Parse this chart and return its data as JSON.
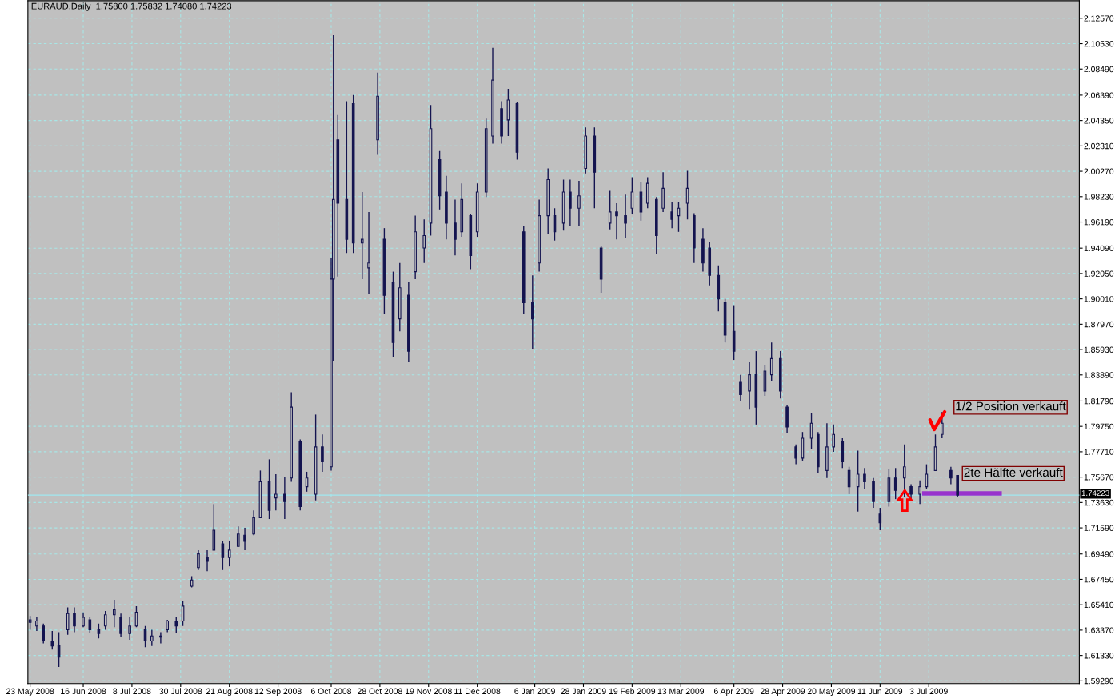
{
  "chart_data": {
    "type": "candlestick",
    "title": "EURAUD,Daily  1.75800 1.75832 1.74080 1.74223",
    "color": "#141450",
    "grid": true,
    "x": [
      "2008-05-23",
      "2008-05-26",
      "2008-05-29",
      "2008-06-02",
      "2008-06-05",
      "2008-06-09",
      "2008-06-12",
      "2008-06-16",
      "2008-06-19",
      "2008-06-23",
      "2008-06-26",
      "2008-06-30",
      "2008-07-03",
      "2008-07-07",
      "2008-07-10",
      "2008-07-14",
      "2008-07-17",
      "2008-07-21",
      "2008-07-24",
      "2008-07-28",
      "2008-07-31",
      "2008-08-04",
      "2008-08-07",
      "2008-08-11",
      "2008-08-14",
      "2008-08-18",
      "2008-08-21",
      "2008-08-25",
      "2008-08-28",
      "2008-09-01",
      "2008-09-04",
      "2008-09-08",
      "2008-09-11",
      "2008-09-15",
      "2008-09-18",
      "2008-09-22",
      "2008-09-25",
      "2008-09-29",
      "2008-10-02",
      "2008-10-06",
      "2008-10-07",
      "2008-10-09",
      "2008-10-13",
      "2008-10-16",
      "2008-10-20",
      "2008-10-23",
      "2008-10-27",
      "2008-10-30",
      "2008-11-03",
      "2008-11-06",
      "2008-11-10",
      "2008-11-13",
      "2008-11-17",
      "2008-11-20",
      "2008-11-24",
      "2008-11-27",
      "2008-12-01",
      "2008-12-04",
      "2008-12-08",
      "2008-12-11",
      "2008-12-15",
      "2008-12-18",
      "2008-12-22",
      "2008-12-25",
      "2008-12-29",
      "2009-01-01",
      "2009-01-05",
      "2009-01-08",
      "2009-01-12",
      "2009-01-15",
      "2009-01-19",
      "2009-01-22",
      "2009-01-26",
      "2009-01-29",
      "2009-02-02",
      "2009-02-05",
      "2009-02-09",
      "2009-02-12",
      "2009-02-16",
      "2009-02-19",
      "2009-02-23",
      "2009-02-26",
      "2009-03-02",
      "2009-03-05",
      "2009-03-09",
      "2009-03-12",
      "2009-03-16",
      "2009-03-19",
      "2009-03-23",
      "2009-03-26",
      "2009-03-30",
      "2009-04-02",
      "2009-04-06",
      "2009-04-09",
      "2009-04-13",
      "2009-04-16",
      "2009-04-20",
      "2009-04-23",
      "2009-04-27",
      "2009-04-30",
      "2009-05-04",
      "2009-05-07",
      "2009-05-11",
      "2009-05-14",
      "2009-05-18",
      "2009-05-21",
      "2009-05-25",
      "2009-05-28",
      "2009-06-01",
      "2009-06-04",
      "2009-06-08",
      "2009-06-11",
      "2009-06-15",
      "2009-06-18",
      "2009-06-22",
      "2009-06-25",
      "2009-06-29",
      "2009-07-02",
      "2009-07-06",
      "2009-07-09",
      "2009-07-13",
      "2009-07-16"
    ],
    "ohlc": [
      [
        1.64,
        1.645,
        1.634,
        1.642
      ],
      [
        1.637,
        1.644,
        1.633,
        1.641
      ],
      [
        1.637,
        1.639,
        1.623,
        1.625
      ],
      [
        1.625,
        1.633,
        1.618,
        1.621
      ],
      [
        1.621,
        1.632,
        1.604,
        1.612
      ],
      [
        1.634,
        1.652,
        1.63,
        1.647
      ],
      [
        1.647,
        1.652,
        1.632,
        1.637
      ],
      [
        1.637,
        1.648,
        1.636,
        1.644
      ],
      [
        1.642,
        1.644,
        1.631,
        1.634
      ],
      [
        1.634,
        1.639,
        1.627,
        1.631
      ],
      [
        1.637,
        1.649,
        1.634,
        1.646
      ],
      [
        1.646,
        1.658,
        1.636,
        1.65
      ],
      [
        1.644,
        1.647,
        1.628,
        1.631
      ],
      [
        1.631,
        1.644,
        1.626,
        1.637
      ],
      [
        1.637,
        1.653,
        1.636,
        1.648
      ],
      [
        1.634,
        1.637,
        1.62,
        1.625
      ],
      [
        1.625,
        1.634,
        1.621,
        1.629
      ],
      [
        1.629,
        1.632,
        1.623,
        1.628
      ],
      [
        1.634,
        1.642,
        1.632,
        1.641
      ],
      [
        1.641,
        1.644,
        1.631,
        1.637
      ],
      [
        1.641,
        1.657,
        1.637,
        1.653
      ],
      [
        1.669,
        1.677,
        1.668,
        1.674
      ],
      [
        1.684,
        1.698,
        1.682,
        1.695
      ],
      [
        1.692,
        1.698,
        1.681,
        1.689
      ],
      [
        1.698,
        1.735,
        1.698,
        1.714
      ],
      [
        1.703,
        1.705,
        1.682,
        1.692
      ],
      [
        1.692,
        1.705,
        1.685,
        1.698
      ],
      [
        1.701,
        1.717,
        1.701,
        1.711
      ],
      [
        1.71,
        1.716,
        1.698,
        1.705
      ],
      [
        1.711,
        1.73,
        1.71,
        1.724
      ],
      [
        1.724,
        1.762,
        1.724,
        1.753
      ],
      [
        1.753,
        1.771,
        1.723,
        1.73
      ],
      [
        1.74,
        1.759,
        1.73,
        1.743
      ],
      [
        1.743,
        1.757,
        1.723,
        1.737
      ],
      [
        1.756,
        1.825,
        1.753,
        1.813
      ],
      [
        1.785,
        1.787,
        1.73,
        1.733
      ],
      [
        1.749,
        1.761,
        1.745,
        1.756
      ],
      [
        1.743,
        1.807,
        1.738,
        1.781
      ],
      [
        1.781,
        1.791,
        1.761,
        1.769
      ],
      [
        1.765,
        1.933,
        1.762,
        1.916
      ],
      [
        1.916,
        2.112,
        1.85,
        1.98
      ],
      [
        2.028,
        2.048,
        1.918,
        1.977
      ],
      [
        1.98,
        2.059,
        1.937,
        1.948
      ],
      [
        2.057,
        2.064,
        1.937,
        1.945
      ],
      [
        1.945,
        1.986,
        1.916,
        1.948
      ],
      [
        1.925,
        1.97,
        1.904,
        1.929
      ],
      [
        2.028,
        2.082,
        2.016,
        2.063
      ],
      [
        1.948,
        1.957,
        1.888,
        1.903
      ],
      [
        1.913,
        1.922,
        1.853,
        1.865
      ],
      [
        1.884,
        1.929,
        1.874,
        1.909
      ],
      [
        1.903,
        1.914,
        1.849,
        1.858
      ],
      [
        1.922,
        1.967,
        1.916,
        1.954
      ],
      [
        1.941,
        1.964,
        1.929,
        1.951
      ],
      [
        1.961,
        2.056,
        1.951,
        2.037
      ],
      [
        2.012,
        2.019,
        1.972,
        1.983
      ],
      [
        1.986,
        1.999,
        1.948,
        1.961
      ],
      [
        1.961,
        1.98,
        1.935,
        1.948
      ],
      [
        1.954,
        1.993,
        1.95,
        1.98
      ],
      [
        1.967,
        1.968,
        1.924,
        1.935
      ],
      [
        1.954,
        1.993,
        1.95,
        1.986
      ],
      [
        1.986,
        2.045,
        1.982,
        2.037
      ],
      [
        2.031,
        2.102,
        2.025,
        2.076
      ],
      [
        2.053,
        2.059,
        2.025,
        2.031
      ],
      [
        2.044,
        2.069,
        2.031,
        2.06
      ],
      [
        2.057,
        2.058,
        2.012,
        2.018
      ],
      [
        1.954,
        1.959,
        1.888,
        1.897
      ],
      [
        1.897,
        1.919,
        1.86,
        1.884
      ],
      [
        1.929,
        1.98,
        1.922,
        1.967
      ],
      [
        1.967,
        2.005,
        1.952,
        1.996
      ],
      [
        1.967,
        1.973,
        1.947,
        1.954
      ],
      [
        1.961,
        1.996,
        1.955,
        1.986
      ],
      [
        1.986,
        1.996,
        1.959,
        1.973
      ],
      [
        1.973,
        1.995,
        1.959,
        1.983
      ],
      [
        2.005,
        2.038,
        2.001,
        2.031
      ],
      [
        2.031,
        2.038,
        1.973,
        2.002
      ],
      [
        1.941,
        1.943,
        1.905,
        1.916
      ],
      [
        1.961,
        1.987,
        1.956,
        1.97
      ],
      [
        1.97,
        1.977,
        1.948,
        1.967
      ],
      [
        1.967,
        1.984,
        1.949,
        1.961
      ],
      [
        1.973,
        1.998,
        1.968,
        1.986
      ],
      [
        1.986,
        1.994,
        1.963,
        1.97
      ],
      [
        1.977,
        1.998,
        1.973,
        1.993
      ],
      [
        1.98,
        1.982,
        1.936,
        1.951
      ],
      [
        1.973,
        2.002,
        1.97,
        1.989
      ],
      [
        1.97,
        1.978,
        1.957,
        1.964
      ],
      [
        1.967,
        1.978,
        1.954,
        1.973
      ],
      [
        1.977,
        2.003,
        1.964,
        1.989
      ],
      [
        1.967,
        1.969,
        1.929,
        1.941
      ],
      [
        1.948,
        1.957,
        1.922,
        1.929
      ],
      [
        1.941,
        1.946,
        1.911,
        1.919
      ],
      [
        1.919,
        1.927,
        1.89,
        1.9
      ],
      [
        1.897,
        1.9,
        1.865,
        1.871
      ],
      [
        1.874,
        1.895,
        1.851,
        1.858
      ],
      [
        1.833,
        1.839,
        1.818,
        1.823
      ],
      [
        1.826,
        1.849,
        1.811,
        1.839
      ],
      [
        1.839,
        1.858,
        1.799,
        1.813
      ],
      [
        1.826,
        1.847,
        1.822,
        1.842
      ],
      [
        1.839,
        1.865,
        1.834,
        1.852
      ],
      [
        1.852,
        1.858,
        1.82,
        1.826
      ],
      [
        1.813,
        1.815,
        1.792,
        1.797
      ],
      [
        1.781,
        1.783,
        1.767,
        1.772
      ],
      [
        1.772,
        1.793,
        1.77,
        1.788
      ],
      [
        1.788,
        1.808,
        1.779,
        1.8
      ],
      [
        1.791,
        1.793,
        1.76,
        1.765
      ],
      [
        1.762,
        1.8,
        1.756,
        1.781
      ],
      [
        1.781,
        1.799,
        1.777,
        1.791
      ],
      [
        1.785,
        1.788,
        1.764,
        1.769
      ],
      [
        1.762,
        1.765,
        1.743,
        1.749
      ],
      [
        1.749,
        1.778,
        1.729,
        1.759
      ],
      [
        1.759,
        1.764,
        1.747,
        1.753
      ],
      [
        1.753,
        1.756,
        1.732,
        1.737
      ],
      [
        1.727,
        1.732,
        1.714,
        1.72
      ],
      [
        1.737,
        1.763,
        1.733,
        1.756
      ],
      [
        1.756,
        1.764,
        1.739,
        1.746
      ],
      [
        1.756,
        1.783,
        1.741,
        1.765
      ],
      [
        1.749,
        1.751,
        1.739,
        1.743
      ],
      [
        1.743,
        1.754,
        1.735,
        1.749
      ],
      [
        1.749,
        1.767,
        1.747,
        1.759
      ],
      [
        1.762,
        1.791,
        1.762,
        1.781
      ],
      [
        1.791,
        1.809,
        1.788,
        1.8
      ],
      [
        1.762,
        1.765,
        1.751,
        1.756
      ],
      [
        1.758,
        1.75832,
        1.7408,
        1.74223
      ]
    ],
    "series": [
      {
        "type": "line",
        "color": "#9933cc",
        "x": [
          "2009-07-01",
          "2009-08-04"
        ],
        "values": [
          1.7436,
          1.7436
        ]
      }
    ],
    "ref_lines": [
      {
        "axis": "y",
        "value": 1.74223,
        "label": "1.74223",
        "color": "#a0e8f0"
      }
    ],
    "annotations": [
      "1/2 Position verkauft",
      "2te Hälfte verkauft"
    ],
    "xlim": [
      "2008-05-22",
      "2009-09-09"
    ],
    "xticks": [
      {
        "value": "2008-05-23",
        "label": "23 May 2008"
      },
      {
        "value": "2008-06-16",
        "label": "16 Jun 2008"
      },
      {
        "value": "2008-07-08",
        "label": "8 Jul 2008"
      },
      {
        "value": "2008-07-30",
        "label": "30 Jul 2008"
      },
      {
        "value": "2008-08-21",
        "label": "21 Aug 2008"
      },
      {
        "value": "2008-09-12",
        "label": "12 Sep 2008"
      },
      {
        "value": "2008-10-06",
        "label": "6 Oct 2008"
      },
      {
        "value": "2008-10-28",
        "label": "28 Oct 2008"
      },
      {
        "value": "2008-11-19",
        "label": "19 Nov 2008"
      },
      {
        "value": "2008-12-11",
        "label": "11 Dec 2008"
      },
      {
        "value": "2009-01-06",
        "label": "6 Jan 2009"
      },
      {
        "value": "2009-01-28",
        "label": "28 Jan 2009"
      },
      {
        "value": "2009-02-19",
        "label": "19 Feb 2009"
      },
      {
        "value": "2009-03-13",
        "label": "13 Mar 2009"
      },
      {
        "value": "2009-04-06",
        "label": "6 Apr 2009"
      },
      {
        "value": "2009-04-28",
        "label": "28 Apr 2009"
      },
      {
        "value": "2009-05-20",
        "label": "20 May 2009"
      },
      {
        "value": "2009-06-11",
        "label": "11 Jun 2009"
      },
      {
        "value": "2009-07-03",
        "label": "3 Jul 2009"
      }
    ],
    "ylim": [
      1.5907,
      2.1398
    ],
    "yticks": [
      {
        "value": 1.5929,
        "label": "1.59290"
      },
      {
        "value": 1.6133,
        "label": "1.61330"
      },
      {
        "value": 1.6337,
        "label": "1.63370"
      },
      {
        "value": 1.6541,
        "label": "1.65410"
      },
      {
        "value": 1.6745,
        "label": "1.67450"
      },
      {
        "value": 1.6949,
        "label": "1.69490"
      },
      {
        "value": 1.7159,
        "label": "1.71590"
      },
      {
        "value": 1.7363,
        "label": "1.73630"
      },
      {
        "value": 1.7567,
        "label": "1.75670"
      },
      {
        "value": 1.7771,
        "label": "1.77710"
      },
      {
        "value": 1.7975,
        "label": "1.79750"
      },
      {
        "value": 1.8179,
        "label": "1.81790"
      },
      {
        "value": 1.8389,
        "label": "1.83890"
      },
      {
        "value": 1.8593,
        "label": "1.85930"
      },
      {
        "value": 1.8797,
        "label": "1.87970"
      },
      {
        "value": 1.9001,
        "label": "1.90010"
      },
      {
        "value": 1.9205,
        "label": "1.92050"
      },
      {
        "value": 1.9409,
        "label": "1.94090"
      },
      {
        "value": 1.9619,
        "label": "1.96190"
      },
      {
        "value": 1.9823,
        "label": "1.98230"
      },
      {
        "value": 2.0027,
        "label": "2.00270"
      },
      {
        "value": 2.0231,
        "label": "2.02310"
      },
      {
        "value": 2.0435,
        "label": "2.04350"
      },
      {
        "value": 2.0639,
        "label": "2.06390"
      },
      {
        "value": 2.0849,
        "label": "2.08490"
      },
      {
        "value": 2.1053,
        "label": "2.10530"
      },
      {
        "value": 2.1257,
        "label": "2.12570"
      }
    ]
  }
}
